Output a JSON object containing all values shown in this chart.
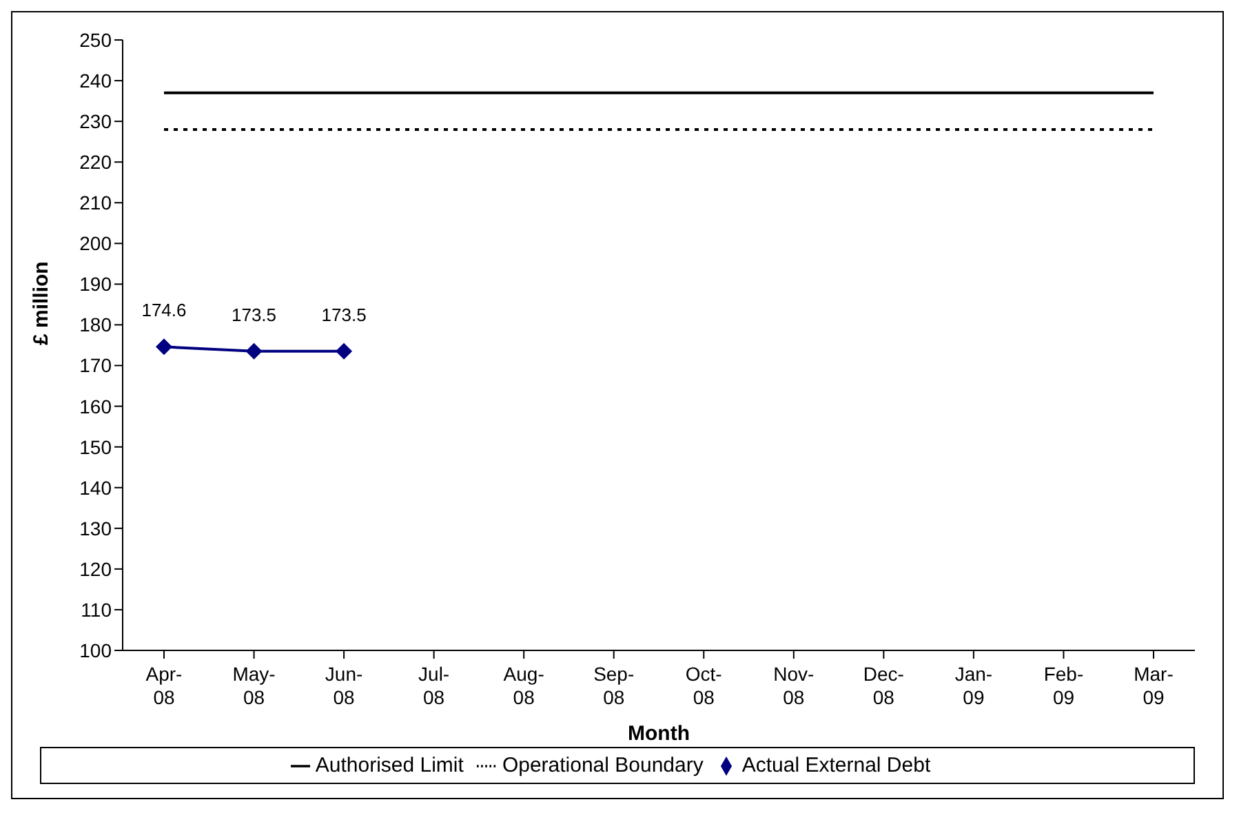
{
  "chart_data": {
    "type": "line",
    "xlabel": "Month",
    "ylabel": "£ million",
    "categories": [
      "Apr-08",
      "May-08",
      "Jun-08",
      "Jul-08",
      "Aug-08",
      "Sep-08",
      "Oct-08",
      "Nov-08",
      "Dec-08",
      "Jan-09",
      "Feb-09",
      "Mar-09"
    ],
    "series": [
      {
        "name": "Authorised Limit",
        "color": "#000000",
        "line_style": "solid",
        "marker": "none",
        "values": [
          237,
          237,
          237,
          237,
          237,
          237,
          237,
          237,
          237,
          237,
          237,
          237
        ]
      },
      {
        "name": "Operational Boundary",
        "color": "#000000",
        "line_style": "dotted",
        "marker": "none",
        "values": [
          228,
          228,
          228,
          228,
          228,
          228,
          228,
          228,
          228,
          228,
          228,
          228
        ]
      },
      {
        "name": "Actual External Debt",
        "color": "#000080",
        "line_style": "solid",
        "marker": "diamond",
        "values": [
          174.6,
          173.5,
          173.5,
          null,
          null,
          null,
          null,
          null,
          null,
          null,
          null,
          null
        ],
        "value_labels": [
          "174.6",
          "173.5",
          "173.5",
          null,
          null,
          null,
          null,
          null,
          null,
          null,
          null,
          null
        ]
      }
    ],
    "ylim": [
      100,
      250
    ],
    "yticks": [
      100,
      110,
      120,
      130,
      140,
      150,
      160,
      170,
      180,
      190,
      200,
      210,
      220,
      230,
      240,
      250
    ],
    "grid": false,
    "legend": "bottom"
  }
}
